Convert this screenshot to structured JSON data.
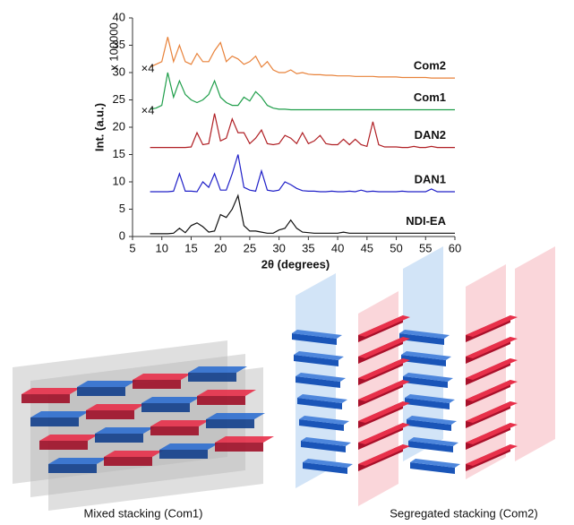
{
  "chart_data": {
    "type": "line",
    "y_label": "Int. (a.u.)",
    "y_scale_label": "x 100000",
    "x_label": "2θ (degrees)",
    "xlim": [
      5,
      60
    ],
    "xticks": [
      5,
      10,
      15,
      20,
      25,
      30,
      35,
      40,
      45,
      50,
      55,
      60
    ],
    "ylim": [
      0,
      40
    ],
    "yticks": [
      0,
      5,
      10,
      15,
      20,
      25,
      30,
      35,
      40
    ],
    "x": [
      8,
      9,
      10,
      11,
      12,
      13,
      14,
      15,
      16,
      17,
      18,
      19,
      20,
      21,
      22,
      23,
      24,
      25,
      26,
      27,
      28,
      29,
      30,
      31,
      32,
      33,
      34,
      35,
      36,
      37,
      38,
      39,
      40,
      41,
      42,
      43,
      44,
      45,
      46,
      47,
      48,
      49,
      50,
      51,
      52,
      53,
      54,
      55,
      56,
      57,
      58,
      59,
      60
    ],
    "series": [
      {
        "name": "Com2",
        "color": "#e8823a",
        "values": [
          31,
          31.5,
          32,
          36.5,
          32,
          35,
          32,
          31.5,
          33.5,
          32,
          32,
          34,
          35.5,
          32,
          33,
          32.5,
          31.5,
          32,
          33,
          31,
          32,
          30.5,
          30,
          30,
          30.5,
          29.8,
          30,
          29.7,
          29.6,
          29.6,
          29.5,
          29.5,
          29.4,
          29.4,
          29.4,
          29.3,
          29.3,
          29.3,
          29.3,
          29.2,
          29.2,
          29.2,
          29.2,
          29.1,
          29.1,
          29.1,
          29.1,
          29.1,
          29,
          29,
          29,
          29,
          29
        ]
      },
      {
        "name": "Com1",
        "color": "#1f9e4a",
        "values": [
          23.3,
          23.5,
          24,
          30,
          25.5,
          28.5,
          26,
          25,
          24.5,
          25,
          26,
          28.5,
          25.5,
          24.5,
          24,
          24,
          25.5,
          24.8,
          26.5,
          25.5,
          24,
          23.5,
          23.3,
          23.3,
          23.2,
          23.2,
          23.2,
          23.2,
          23.2,
          23.2,
          23.2,
          23.2,
          23.2,
          23.2,
          23.2,
          23.2,
          23.2,
          23.2,
          23.2,
          23.2,
          23.2,
          23.2,
          23.2,
          23.2,
          23.2,
          23.2,
          23.2,
          23.2,
          23.2,
          23.2,
          23.2,
          23.2,
          23.2
        ]
      },
      {
        "name": "DAN2",
        "color": "#b01f24",
        "values": [
          16.3,
          16.3,
          16.3,
          16.3,
          16.3,
          16.3,
          16.3,
          16.4,
          19,
          16.8,
          17,
          22.5,
          17.5,
          18,
          21.5,
          19,
          19,
          17,
          18,
          19.5,
          17,
          16.8,
          17,
          18.5,
          18,
          17,
          19,
          17,
          17.5,
          18.5,
          17,
          16.8,
          16.8,
          17.8,
          16.8,
          17.8,
          16.8,
          16.5,
          21,
          16.8,
          16.4,
          16.4,
          16.4,
          16.3,
          16.3,
          16.5,
          16.3,
          16.3,
          16.5,
          16.3,
          16.3,
          16.3,
          16.3
        ]
      },
      {
        "name": "DAN1",
        "color": "#2020c8",
        "values": [
          8.2,
          8.2,
          8.2,
          8.2,
          8.3,
          11.5,
          8.3,
          8.3,
          8.2,
          10,
          9,
          11.5,
          8.5,
          8.5,
          11.5,
          15,
          9,
          8.5,
          8.3,
          12,
          8.5,
          8.3,
          8.5,
          10,
          9.5,
          8.8,
          8.4,
          8.3,
          8.3,
          8.2,
          8.2,
          8.3,
          8.2,
          8.2,
          8.3,
          8.2,
          8.5,
          8.2,
          8.3,
          8.2,
          8.2,
          8.2,
          8.2,
          8.3,
          8.2,
          8.2,
          8.2,
          8.2,
          8.7,
          8.2,
          8.2,
          8.2,
          8.2
        ]
      },
      {
        "name": "NDI-EA",
        "color": "#111111",
        "values": [
          0.5,
          0.5,
          0.5,
          0.5,
          0.6,
          1.5,
          0.7,
          2,
          2.5,
          1.8,
          0.8,
          1,
          4,
          3.5,
          5,
          7.5,
          2,
          1,
          1,
          0.8,
          0.6,
          0.6,
          1.2,
          1.5,
          3,
          1.5,
          0.8,
          0.7,
          0.6,
          0.6,
          0.6,
          0.6,
          0.6,
          0.8,
          0.6,
          0.6,
          0.6,
          0.6,
          0.6,
          0.6,
          0.6,
          0.6,
          0.6,
          0.6,
          0.6,
          0.6,
          0.6,
          0.6,
          0.6,
          0.6,
          0.6,
          0.6,
          0.6
        ]
      }
    ],
    "annotations": [
      "×4",
      "×4"
    ]
  },
  "figure_captions": [
    "Mixed stacking (Com1)",
    "Segregated stacking (Com2)"
  ]
}
